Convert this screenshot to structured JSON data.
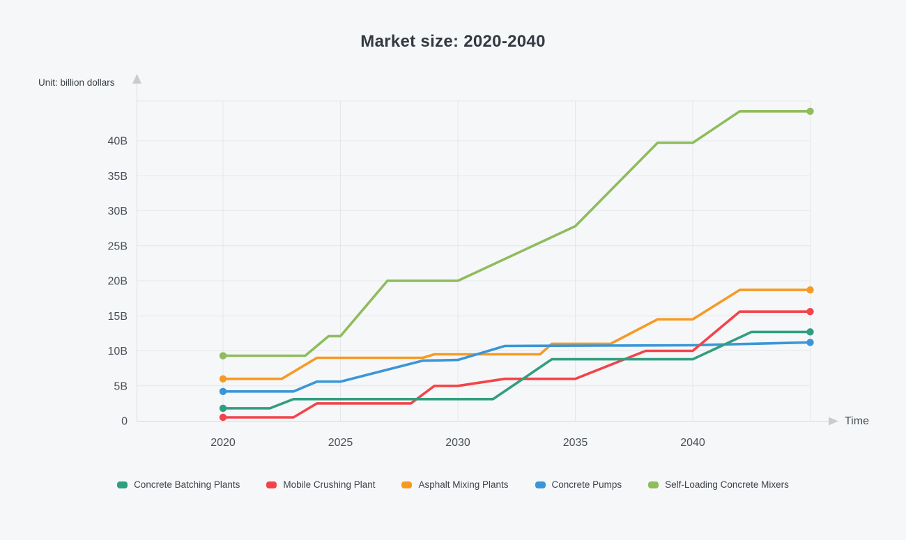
{
  "title": "Market size: 2020-2040",
  "axis": {
    "unit_label": "Unit: billion dollars",
    "time_label": "Time",
    "y_ticks": [
      {
        "v": 0,
        "label": "0"
      },
      {
        "v": 5,
        "label": "5B"
      },
      {
        "v": 10,
        "label": "10B"
      },
      {
        "v": 15,
        "label": "15B"
      },
      {
        "v": 20,
        "label": "20B"
      },
      {
        "v": 25,
        "label": "25B"
      },
      {
        "v": 30,
        "label": "30B"
      },
      {
        "v": 35,
        "label": "35B"
      },
      {
        "v": 40,
        "label": "40B"
      }
    ],
    "x_ticks": [
      {
        "year": 2020,
        "label": "2020"
      },
      {
        "year": 2025,
        "label": "2025"
      },
      {
        "year": 2030,
        "label": "2030"
      },
      {
        "year": 2035,
        "label": "2035"
      },
      {
        "year": 2040,
        "label": "2040"
      }
    ],
    "x_grid_years": [
      2020,
      2025,
      2030,
      2035,
      2040,
      2045
    ]
  },
  "colors": {
    "background": "#f6f7f9",
    "gridline": "#e4e7ea",
    "axis_line": "#d9dcdf",
    "axis_arrow": "#c8ccd1",
    "tick_text": "#4a5057"
  },
  "chart_data": {
    "type": "line",
    "title": "Market size: 2020-2040",
    "xlabel": "Time",
    "ylabel": "Unit: billion dollars",
    "x_range": [
      2020,
      2045
    ],
    "ylim": [
      0,
      45.7
    ],
    "y_tick_step": 5,
    "grid": true,
    "legend_position": "bottom",
    "endpoint_markers": "dots at first and last point of each series",
    "series": [
      {
        "name": "Concrete Batching Plants",
        "color": "#319e80",
        "points": [
          [
            2020,
            1.8
          ],
          [
            2022,
            1.8
          ],
          [
            2023,
            3.1
          ],
          [
            2031.5,
            3.1
          ],
          [
            2034,
            8.8
          ],
          [
            2040,
            8.8
          ],
          [
            2042.5,
            12.7
          ],
          [
            2045,
            12.7
          ]
        ]
      },
      {
        "name": "Mobile Crushing Plant",
        "color": "#f2444a",
        "points": [
          [
            2020,
            0.5
          ],
          [
            2023,
            0.5
          ],
          [
            2024,
            2.5
          ],
          [
            2028,
            2.5
          ],
          [
            2029,
            5.0
          ],
          [
            2030,
            5.0
          ],
          [
            2032,
            6.0
          ],
          [
            2035,
            6.0
          ],
          [
            2038,
            10.0
          ],
          [
            2040,
            10.0
          ],
          [
            2042,
            15.6
          ],
          [
            2045,
            15.6
          ]
        ]
      },
      {
        "name": "Asphalt Mixing Plants",
        "color": "#f79a23",
        "points": [
          [
            2020,
            6.0
          ],
          [
            2022.5,
            6.0
          ],
          [
            2024,
            9.0
          ],
          [
            2028.5,
            9.0
          ],
          [
            2029,
            9.5
          ],
          [
            2033.5,
            9.5
          ],
          [
            2034,
            11.0
          ],
          [
            2036.5,
            11.0
          ],
          [
            2038.5,
            14.5
          ],
          [
            2040,
            14.5
          ],
          [
            2042,
            18.7
          ],
          [
            2045,
            18.7
          ]
        ]
      },
      {
        "name": "Concrete Pumps",
        "color": "#3a96d8",
        "points": [
          [
            2020,
            4.2
          ],
          [
            2023,
            4.2
          ],
          [
            2024,
            5.6
          ],
          [
            2025,
            5.6
          ],
          [
            2028.5,
            8.6
          ],
          [
            2030,
            8.7
          ],
          [
            2032,
            10.7
          ],
          [
            2040,
            10.8
          ],
          [
            2045,
            11.2
          ]
        ]
      },
      {
        "name": "Self-Loading Concrete Mixers",
        "color": "#8fbc5c",
        "points": [
          [
            2020,
            9.3
          ],
          [
            2023.5,
            9.3
          ],
          [
            2024.5,
            12.1
          ],
          [
            2025,
            12.1
          ],
          [
            2027,
            20.0
          ],
          [
            2030,
            20.0
          ],
          [
            2035,
            27.8
          ],
          [
            2038.5,
            39.7
          ],
          [
            2040,
            39.7
          ],
          [
            2042,
            44.2
          ],
          [
            2045,
            44.2
          ]
        ]
      }
    ]
  }
}
